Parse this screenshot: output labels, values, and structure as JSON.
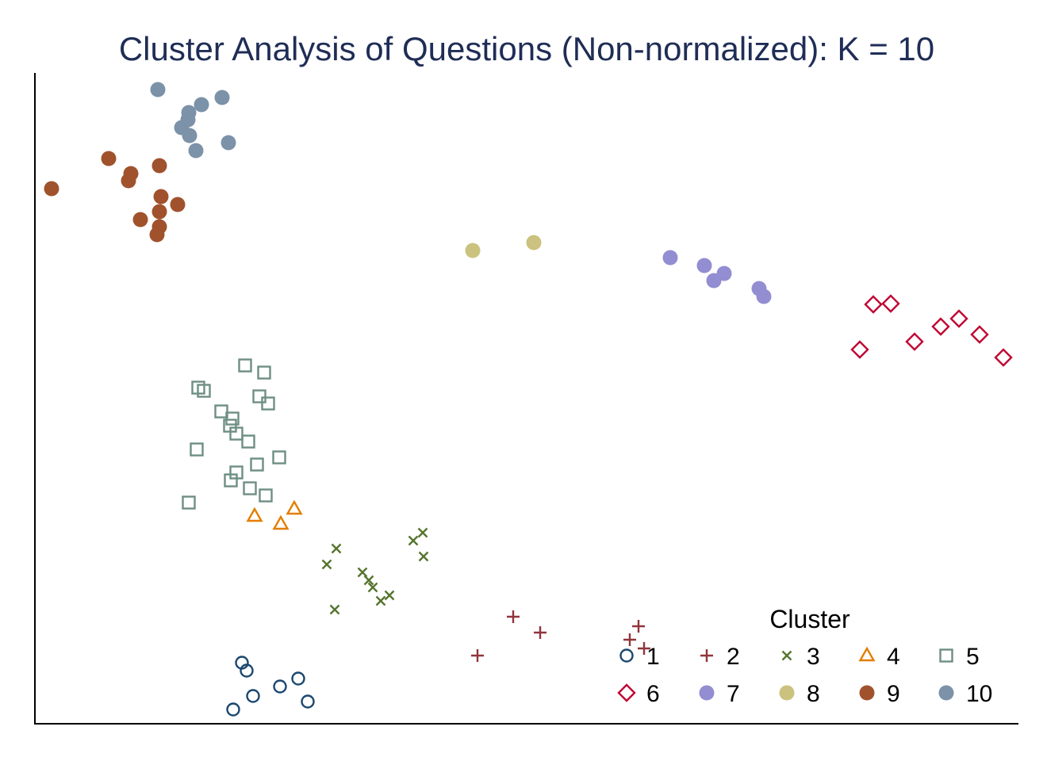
{
  "chart_data": {
    "type": "scatter",
    "title": "Cluster Analysis of Questions (Non-normalized): K = 10",
    "xlabel": "",
    "ylabel": "",
    "xlim": [
      0,
      1240
    ],
    "ylim": [
      0,
      820
    ],
    "grid": false,
    "legend": {
      "title": "Cluster",
      "placement": "bottom-right",
      "columns": 5
    },
    "series": [
      {
        "name": "1",
        "marker": "hollow-circle",
        "color": "#1a476f",
        "points": [
          [
            260,
            77
          ],
          [
            266,
            67
          ],
          [
            274,
            35
          ],
          [
            249,
            18
          ],
          [
            308,
            47
          ],
          [
            331,
            57
          ],
          [
            343,
            28
          ]
        ]
      },
      {
        "name": "2",
        "marker": "plus",
        "color": "#90353b",
        "points": [
          [
            557,
            86
          ],
          [
            602,
            135
          ],
          [
            636,
            115
          ],
          [
            760,
            123
          ],
          [
            749,
            106
          ],
          [
            767,
            95
          ]
        ]
      },
      {
        "name": "3",
        "marker": "x",
        "color": "#55752f",
        "points": [
          [
            367,
            201
          ],
          [
            379,
            221
          ],
          [
            377,
            144
          ],
          [
            412,
            191
          ],
          [
            420,
            181
          ],
          [
            425,
            172
          ],
          [
            435,
            155
          ],
          [
            446,
            162
          ],
          [
            476,
            231
          ],
          [
            488,
            241
          ],
          [
            489,
            211
          ]
        ]
      },
      {
        "name": "4",
        "marker": "hollow-triangle",
        "color": "#e37e00",
        "points": [
          [
            276,
            262
          ],
          [
            309,
            252
          ],
          [
            326,
            271
          ]
        ]
      },
      {
        "name": "5",
        "marker": "hollow-square",
        "color": "#6e8e84",
        "points": [
          [
            264,
            452
          ],
          [
            288,
            443
          ],
          [
            212,
            420
          ],
          [
            205,
            424
          ],
          [
            282,
            413
          ],
          [
            293,
            404
          ],
          [
            234,
            394
          ],
          [
            248,
            385
          ],
          [
            245,
            376
          ],
          [
            253,
            366
          ],
          [
            268,
            356
          ],
          [
            203,
            346
          ],
          [
            307,
            336
          ],
          [
            279,
            327
          ],
          [
            253,
            317
          ],
          [
            246,
            307
          ],
          [
            270,
            297
          ],
          [
            290,
            288
          ],
          [
            193,
            279
          ]
        ]
      },
      {
        "name": "6",
        "marker": "hollow-diamond",
        "color": "#c10534",
        "points": [
          [
            1039,
            472
          ],
          [
            1078,
            530
          ],
          [
            1056,
            529
          ],
          [
            1108,
            482
          ],
          [
            1141,
            501
          ],
          [
            1164,
            511
          ],
          [
            1190,
            491
          ],
          [
            1220,
            462
          ]
        ]
      },
      {
        "name": "7",
        "marker": "filled-circle",
        "color": "#938dd2",
        "points": [
          [
            800,
            588
          ],
          [
            843,
            578
          ],
          [
            868,
            568
          ],
          [
            855,
            559
          ],
          [
            912,
            549
          ],
          [
            918,
            539
          ]
        ]
      },
      {
        "name": "8",
        "marker": "filled-circle",
        "color": "#cac27e",
        "points": [
          [
            551,
            597
          ],
          [
            628,
            607
          ]
        ]
      },
      {
        "name": "9",
        "marker": "filled-circle",
        "color": "#a0522d",
        "points": [
          [
            20,
            675
          ],
          [
            92,
            713
          ],
          [
            120,
            694
          ],
          [
            117,
            685
          ],
          [
            156,
            704
          ],
          [
            158,
            665
          ],
          [
            179,
            655
          ],
          [
            156,
            646
          ],
          [
            132,
            636
          ],
          [
            156,
            627
          ],
          [
            153,
            617
          ]
        ]
      },
      {
        "name": "10",
        "marker": "filled-circle",
        "color": "#7b92a8",
        "points": [
          [
            154,
            800
          ],
          [
            235,
            790
          ],
          [
            209,
            781
          ],
          [
            193,
            771
          ],
          [
            192,
            762
          ],
          [
            184,
            752
          ],
          [
            194,
            742
          ],
          [
            243,
            733
          ],
          [
            202,
            723
          ]
        ]
      }
    ]
  }
}
